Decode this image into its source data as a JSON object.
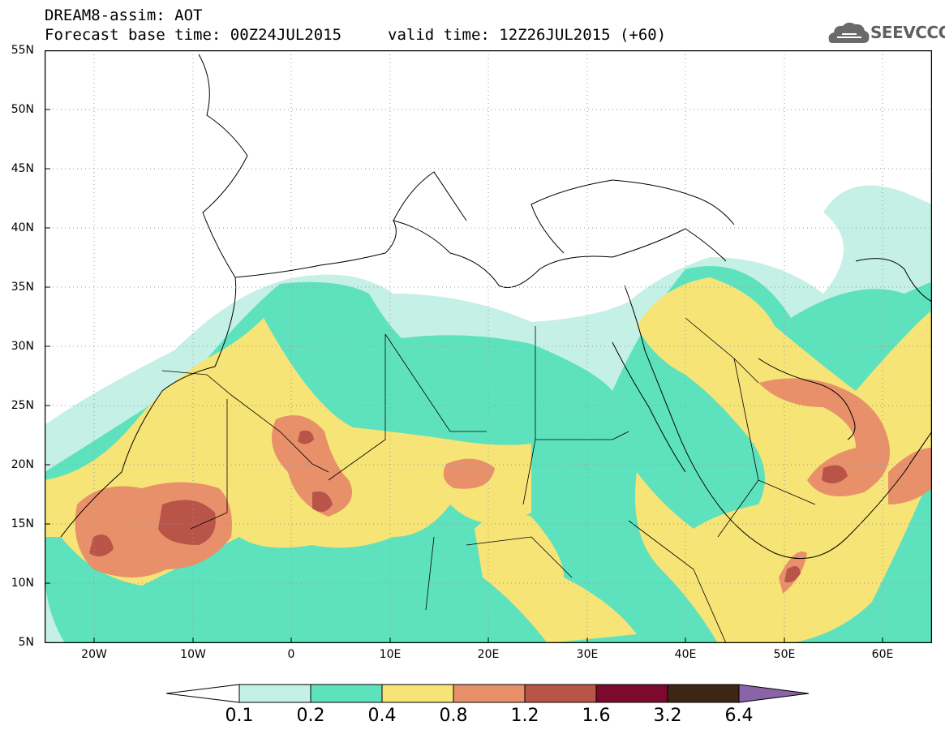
{
  "header": {
    "title": "DREAM8-assim: AOT",
    "base_time": "Forecast base time: 00Z24JUL2015",
    "valid_time": "valid time: 12Z26JUL2015 (+60)"
  },
  "logo": {
    "text": "SEEVCCC",
    "icon": "cloud-icon"
  },
  "axes": {
    "lat_labels": [
      "55N",
      "50N",
      "45N",
      "40N",
      "35N",
      "30N",
      "25N",
      "20N",
      "15N",
      "10N",
      "5N"
    ],
    "lon_labels": [
      "20W",
      "10W",
      "0",
      "10E",
      "20E",
      "30E",
      "40E",
      "50E",
      "60E"
    ],
    "lat_range": [
      5,
      55
    ],
    "lon_range": [
      -25,
      65
    ],
    "grid": "dotted"
  },
  "legend": {
    "labels": [
      "0.1",
      "0.2",
      "0.4",
      "0.8",
      "1.2",
      "1.6",
      "3.2",
      "6.4"
    ],
    "colors": [
      "#ffffff",
      "#c5f0e6",
      "#5ee2bd",
      "#f6e477",
      "#e8906a",
      "#b85448",
      "#7d0a2e",
      "#3e2615",
      "#8a63a8"
    ]
  }
}
